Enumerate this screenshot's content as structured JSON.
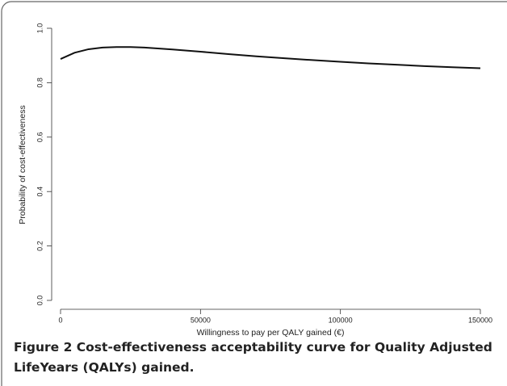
{
  "chart_data": {
    "type": "line",
    "xlabel": "Willingness to pay per QALY gained (€)",
    "ylabel": "Probability of cost-effectiveness",
    "caption_label": "Figure 2",
    "caption": "Cost-effectiveness acceptability curve for Quality Adjusted LifeYears (QALYs) gained.",
    "x": [
      0,
      5000,
      10000,
      15000,
      20000,
      25000,
      30000,
      40000,
      50000,
      60000,
      70000,
      80000,
      90000,
      100000,
      110000,
      120000,
      130000,
      140000,
      150000
    ],
    "series": [
      {
        "color": "#111111",
        "values": [
          0.887,
          0.91,
          0.923,
          0.929,
          0.931,
          0.931,
          0.929,
          0.922,
          0.914,
          0.905,
          0.897,
          0.89,
          0.883,
          0.877,
          0.871,
          0.866,
          0.861,
          0.857,
          0.853
        ]
      }
    ],
    "xlim": [
      0,
      150000
    ],
    "ylim": [
      0,
      1
    ],
    "xticks": [
      0,
      50000,
      100000,
      150000
    ],
    "yticks": [
      {
        "value": 0,
        "label": "0.0"
      },
      0.2,
      0.4,
      0.6,
      0.8,
      {
        "value": 1,
        "label": "1.0"
      }
    ]
  }
}
